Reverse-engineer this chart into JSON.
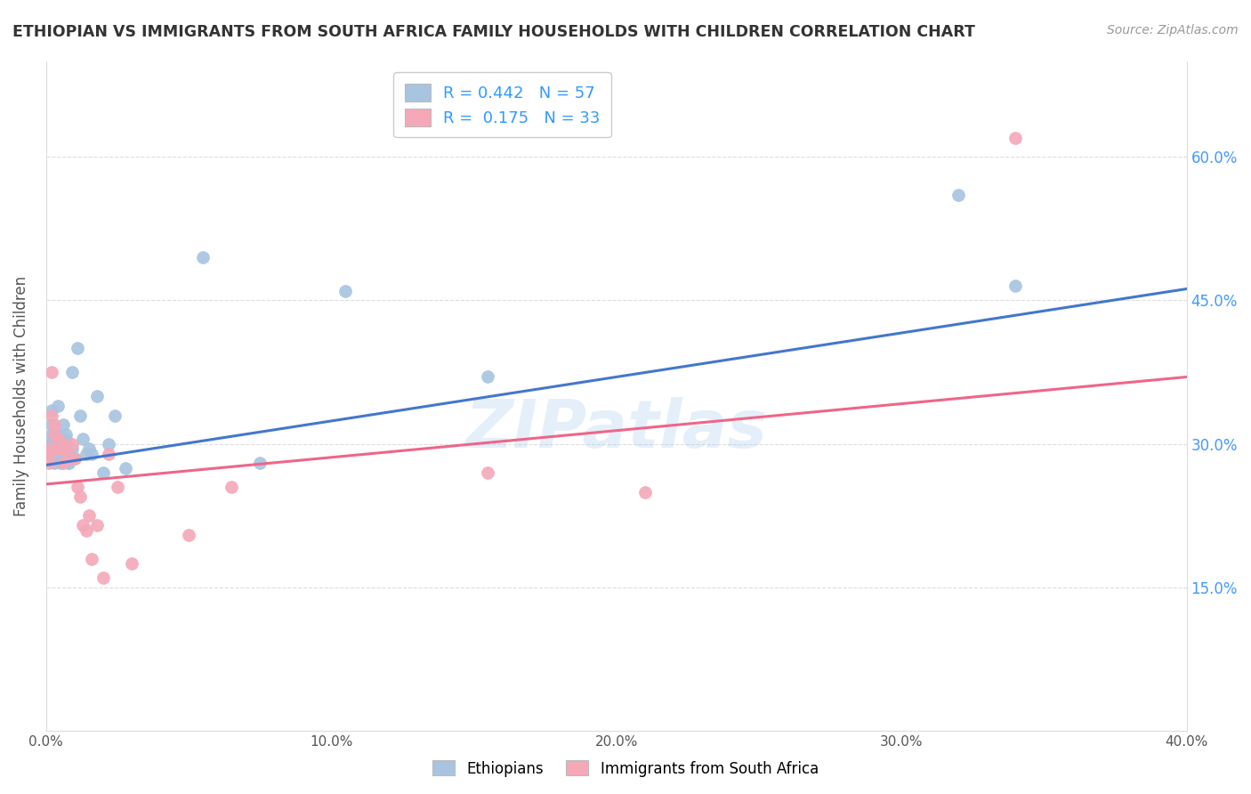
{
  "title": "ETHIOPIAN VS IMMIGRANTS FROM SOUTH AFRICA FAMILY HOUSEHOLDS WITH CHILDREN CORRELATION CHART",
  "source": "Source: ZipAtlas.com",
  "ylabel": "Family Households with Children",
  "blue_color": "#A8C4E0",
  "pink_color": "#F4A8B8",
  "blue_line_color": "#4477CC",
  "pink_line_color": "#EE6688",
  "watermark": "ZIPatlas",
  "blue_line_x0": 0.0,
  "blue_line_y0": 0.278,
  "blue_line_x1": 0.4,
  "blue_line_y1": 0.462,
  "pink_line_x0": 0.0,
  "pink_line_y0": 0.258,
  "pink_line_x1": 0.4,
  "pink_line_y1": 0.37,
  "ethiopians_x": [
    0.001,
    0.001,
    0.001,
    0.002,
    0.002,
    0.002,
    0.002,
    0.003,
    0.003,
    0.003,
    0.003,
    0.003,
    0.004,
    0.004,
    0.004,
    0.004,
    0.005,
    0.005,
    0.005,
    0.005,
    0.005,
    0.006,
    0.006,
    0.006,
    0.006,
    0.007,
    0.007,
    0.007,
    0.008,
    0.008,
    0.009,
    0.009,
    0.01,
    0.011,
    0.012,
    0.013,
    0.014,
    0.015,
    0.016,
    0.018,
    0.02,
    0.022,
    0.024,
    0.028,
    0.055,
    0.075,
    0.105,
    0.155,
    0.32,
    0.34,
    0.003,
    0.004,
    0.005,
    0.006,
    0.007,
    0.008,
    0.009
  ],
  "ethiopians_y": [
    0.29,
    0.295,
    0.3,
    0.3,
    0.31,
    0.32,
    0.335,
    0.295,
    0.3,
    0.305,
    0.29,
    0.285,
    0.31,
    0.3,
    0.29,
    0.34,
    0.295,
    0.305,
    0.285,
    0.295,
    0.305,
    0.3,
    0.295,
    0.305,
    0.32,
    0.31,
    0.295,
    0.305,
    0.28,
    0.29,
    0.295,
    0.375,
    0.285,
    0.4,
    0.33,
    0.305,
    0.29,
    0.295,
    0.29,
    0.35,
    0.27,
    0.3,
    0.33,
    0.275,
    0.495,
    0.28,
    0.46,
    0.37,
    0.56,
    0.465,
    0.28,
    0.285,
    0.28,
    0.285,
    0.29,
    0.28,
    0.285
  ],
  "sa_x": [
    0.001,
    0.001,
    0.001,
    0.002,
    0.002,
    0.003,
    0.003,
    0.004,
    0.004,
    0.005,
    0.005,
    0.006,
    0.006,
    0.007,
    0.008,
    0.009,
    0.01,
    0.011,
    0.012,
    0.013,
    0.014,
    0.015,
    0.016,
    0.018,
    0.02,
    0.022,
    0.025,
    0.03,
    0.05,
    0.065,
    0.155,
    0.21,
    0.34
  ],
  "sa_y": [
    0.29,
    0.295,
    0.28,
    0.375,
    0.33,
    0.31,
    0.32,
    0.295,
    0.305,
    0.3,
    0.295,
    0.28,
    0.3,
    0.295,
    0.285,
    0.3,
    0.285,
    0.255,
    0.245,
    0.215,
    0.21,
    0.225,
    0.18,
    0.215,
    0.16,
    0.29,
    0.255,
    0.175,
    0.205,
    0.255,
    0.27,
    0.25,
    0.62
  ],
  "xlim": [
    0.0,
    0.4
  ],
  "ylim": [
    0.0,
    0.7
  ],
  "grid_color": "#DDDDDD",
  "background_color": "#FFFFFF"
}
